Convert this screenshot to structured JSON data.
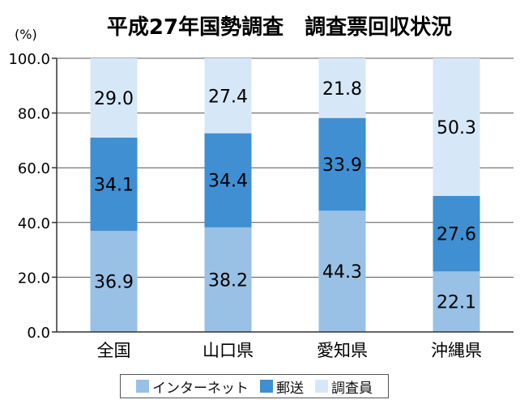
{
  "chart_data": {
    "type": "bar",
    "stacked": true,
    "title": "平成27年国勢調査　調査票回収状況",
    "ylabel": "(%)",
    "ylim": [
      0,
      100
    ],
    "yticks": [
      "0.0",
      "20.0",
      "40.0",
      "60.0",
      "80.0",
      "100.0"
    ],
    "categories": [
      "全国",
      "山口県",
      "愛知県",
      "沖縄県"
    ],
    "series": [
      {
        "name": "インターネット",
        "color": "#99c1e6",
        "values": [
          36.9,
          38.2,
          44.3,
          22.1
        ]
      },
      {
        "name": "郵送",
        "color": "#3f8fd2",
        "values": [
          34.1,
          34.4,
          33.9,
          27.6
        ]
      },
      {
        "name": "調査員",
        "color": "#d6e8f8",
        "values": [
          29.0,
          27.4,
          21.8,
          50.3
        ]
      }
    ],
    "grid": true,
    "legend": "bottom"
  }
}
